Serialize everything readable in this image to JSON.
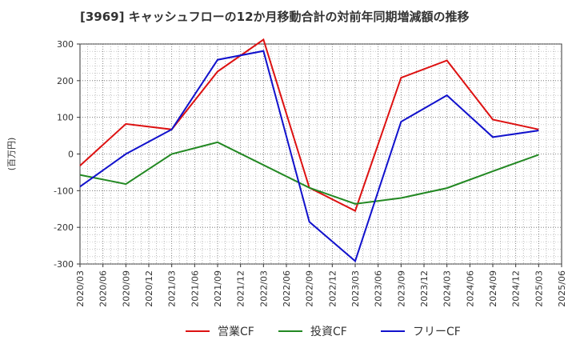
{
  "chart_data": {
    "type": "line",
    "title": "[3969]  キャッシュフローの12か月移動合計の対前年同期増減額の推移",
    "ylabel": "(百万円)",
    "xlabel": "",
    "ylim": [
      -300,
      300
    ],
    "yticks": [
      -300,
      -200,
      -100,
      0,
      100,
      200,
      300
    ],
    "grid": true,
    "legend_position": "bottom",
    "x": [
      "2020/03",
      "2020/06",
      "2020/09",
      "2020/12",
      "2021/03",
      "2021/06",
      "2021/09",
      "2021/12",
      "2022/03",
      "2022/06",
      "2022/09",
      "2022/12",
      "2023/03",
      "2023/06",
      "2023/09",
      "2023/12",
      "2024/03",
      "2024/06",
      "2024/09",
      "2024/12",
      "2025/03",
      "2025/06"
    ],
    "series": [
      {
        "name": "営業CF",
        "color": "#dd1111",
        "points": [
          [
            "2020/03",
            -32
          ],
          [
            "2020/09",
            82
          ],
          [
            "2021/03",
            67
          ],
          [
            "2021/09",
            225
          ],
          [
            "2022/03",
            312
          ],
          [
            "2022/09",
            -92
          ],
          [
            "2023/03",
            -155
          ],
          [
            "2023/09",
            208
          ],
          [
            "2024/03",
            255
          ],
          [
            "2024/09",
            94
          ],
          [
            "2025/03",
            67
          ]
        ]
      },
      {
        "name": "投資CF",
        "color": "#228822",
        "points": [
          [
            "2020/03",
            -57
          ],
          [
            "2020/09",
            -82
          ],
          [
            "2021/03",
            0
          ],
          [
            "2021/09",
            32
          ],
          [
            "2022/09",
            -92
          ],
          [
            "2023/03",
            -136
          ],
          [
            "2023/09",
            -120
          ],
          [
            "2024/03",
            -93
          ],
          [
            "2024/09",
            -47
          ],
          [
            "2025/03",
            -2
          ]
        ]
      },
      {
        "name": "フリーCF",
        "color": "#1111cc",
        "points": [
          [
            "2020/03",
            -89
          ],
          [
            "2020/09",
            0
          ],
          [
            "2021/03",
            67
          ],
          [
            "2021/09",
            257
          ],
          [
            "2022/03",
            281
          ],
          [
            "2022/09",
            -185
          ],
          [
            "2023/03",
            -292
          ],
          [
            "2023/09",
            88
          ],
          [
            "2024/03",
            160
          ],
          [
            "2024/09",
            46
          ],
          [
            "2025/03",
            64
          ]
        ]
      }
    ]
  }
}
